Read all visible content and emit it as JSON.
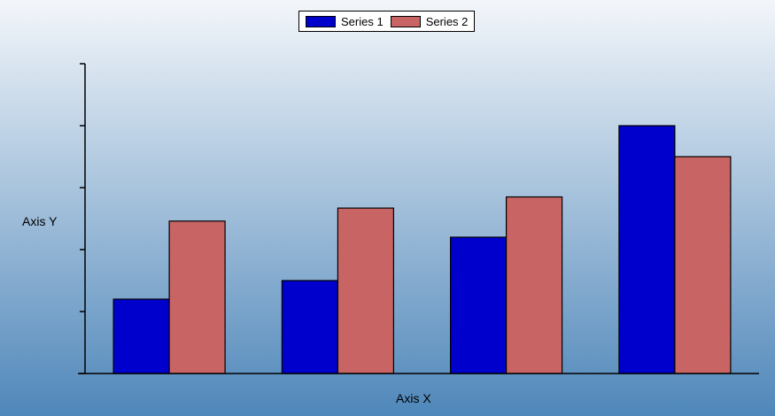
{
  "chart_data": {
    "type": "bar",
    "title": "",
    "xlabel": "Axis X",
    "ylabel": "Axis Y",
    "categories": [
      "",
      "",
      "",
      ""
    ],
    "series": [
      {
        "name": "Series 1",
        "color": "#0000cc",
        "values": [
          1.2,
          1.5,
          2.2,
          4.0
        ]
      },
      {
        "name": "Series 2",
        "color": "#c86464",
        "values": [
          2.46,
          2.67,
          2.85,
          3.5
        ]
      }
    ],
    "ylim": [
      0,
      5
    ],
    "yticks": [
      0,
      1,
      2,
      3,
      4,
      5
    ],
    "ytick_labels_shown": false,
    "grid": false,
    "legend": "top-center",
    "background": {
      "top": "#f3f6fa",
      "bottom": "#4f87ba"
    }
  }
}
